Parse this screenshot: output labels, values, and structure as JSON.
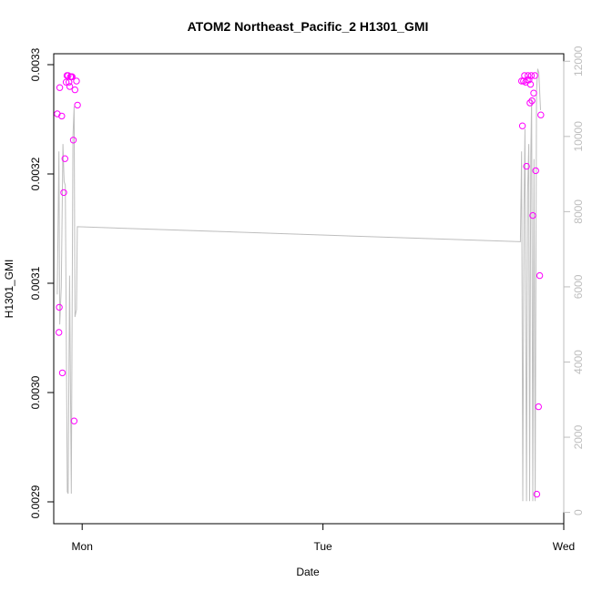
{
  "chart_data": {
    "type": "scatter",
    "title": "ATOM2 Northeast_Pacific_2 H1301_GMI",
    "xlabel": "Date",
    "ylabel": "H1301_GMI",
    "x_axis": {
      "type": "date",
      "range": [
        "Sun 21:10",
        "Wed 00:00"
      ],
      "ticks": [
        {
          "label": "Mon",
          "value": "Mon 00:00"
        },
        {
          "label": "Tue",
          "value": "Tue 00:00"
        },
        {
          "label": "Wed",
          "value": "Wed 00:00"
        }
      ]
    },
    "y_axis_left": {
      "range": [
        0.00288,
        0.00331
      ],
      "ticks": [
        {
          "label": "0.0029",
          "value": 0.0029
        },
        {
          "label": "0.0030",
          "value": 0.003
        },
        {
          "label": "0.0031",
          "value": 0.0031
        },
        {
          "label": "0.0032",
          "value": 0.0032
        },
        {
          "label": "0.0033",
          "value": 0.0033
        }
      ]
    },
    "y_axis_right": {
      "range": [
        -300,
        12200
      ],
      "ticks": [
        {
          "label": "0",
          "value": 0
        },
        {
          "label": "2000",
          "value": 2000
        },
        {
          "label": "4000",
          "value": 4000
        },
        {
          "label": "6000",
          "value": 6000
        },
        {
          "label": "8000",
          "value": 8000
        },
        {
          "label": "10000",
          "value": 10000
        },
        {
          "label": "12000",
          "value": 12000
        }
      ],
      "color": "#bebebe"
    },
    "grid": false,
    "legend": "none",
    "series": [
      {
        "kind": "points",
        "color": "#ff00ff",
        "points": [
          {
            "x": "Sun 21:31",
            "y": 0.003255
          },
          {
            "x": "Sun 21:41",
            "y": 0.003055
          },
          {
            "x": "Sun 21:43",
            "y": 0.003078
          },
          {
            "x": "Sun 21:46",
            "y": 0.003279
          },
          {
            "x": "Sun 21:58",
            "y": 0.003253
          },
          {
            "x": "Sun 22:02",
            "y": 0.003018
          },
          {
            "x": "Sun 22:10",
            "y": 0.003183
          },
          {
            "x": "Sun 22:17",
            "y": 0.003214
          },
          {
            "x": "Sun 22:24",
            "y": 0.003284
          },
          {
            "x": "Sun 22:29",
            "y": 0.00329
          },
          {
            "x": "Sun 22:36",
            "y": 0.00329
          },
          {
            "x": "Sun 22:41",
            "y": 0.003284
          },
          {
            "x": "Sun 22:46",
            "y": 0.00328
          },
          {
            "x": "Sun 22:50",
            "y": 0.003289
          },
          {
            "x": "Sun 22:55",
            "y": 0.003289
          },
          {
            "x": "Sun 23:00",
            "y": 0.003289
          },
          {
            "x": "Sun 23:07",
            "y": 0.003231
          },
          {
            "x": "Sun 23:12",
            "y": 0.002974
          },
          {
            "x": "Sun 23:17",
            "y": 0.003277
          },
          {
            "x": "Sun 23:26",
            "y": 0.003285
          },
          {
            "x": "Sun 23:32",
            "y": 0.003263
          },
          {
            "x": "Tue 19:48",
            "y": 0.003285
          },
          {
            "x": "Tue 19:53",
            "y": 0.003244
          },
          {
            "x": "Tue 19:59",
            "y": 0.003285
          },
          {
            "x": "Tue 20:05",
            "y": 0.00329
          },
          {
            "x": "Tue 20:12",
            "y": 0.003284
          },
          {
            "x": "Tue 20:17",
            "y": 0.003207
          },
          {
            "x": "Tue 20:22",
            "y": 0.003286
          },
          {
            "x": "Tue 20:26",
            "y": 0.00329
          },
          {
            "x": "Tue 20:32",
            "y": 0.003286
          },
          {
            "x": "Tue 20:38",
            "y": 0.003265
          },
          {
            "x": "Tue 20:41",
            "y": 0.003282
          },
          {
            "x": "Tue 20:46",
            "y": 0.00329
          },
          {
            "x": "Tue 20:50",
            "y": 0.003267
          },
          {
            "x": "Tue 20:55",
            "y": 0.003162
          },
          {
            "x": "Tue 21:00",
            "y": 0.003274
          },
          {
            "x": "Tue 21:07",
            "y": 0.00329
          },
          {
            "x": "Tue 21:12",
            "y": 0.003203
          },
          {
            "x": "Tue 21:19",
            "y": 0.002907
          },
          {
            "x": "Tue 21:29",
            "y": 0.002987
          },
          {
            "x": "Tue 21:36",
            "y": 0.003107
          },
          {
            "x": "Tue 21:43",
            "y": 0.003254
          }
        ]
      },
      {
        "kind": "line",
        "axis": "right",
        "color": "#bebebe",
        "points": [
          {
            "x": "Sun 21:31",
            "y": 5800
          },
          {
            "x": "Sun 21:41",
            "y": 9600
          },
          {
            "x": "Sun 21:46",
            "y": 5000
          },
          {
            "x": "Sun 21:55",
            "y": 6000
          },
          {
            "x": "Sun 22:05",
            "y": 9800
          },
          {
            "x": "Sun 22:12",
            "y": 8800
          },
          {
            "x": "Sun 22:19",
            "y": 8700
          },
          {
            "x": "Sun 22:31",
            "y": 550
          },
          {
            "x": "Sun 22:36",
            "y": 500
          },
          {
            "x": "Sun 22:45",
            "y": 6300
          },
          {
            "x": "Sun 22:55",
            "y": 500
          },
          {
            "x": "Sun 23:05",
            "y": 10000
          },
          {
            "x": "Sun 23:12",
            "y": 10800
          },
          {
            "x": "Sun 23:17",
            "y": 5200
          },
          {
            "x": "Sun 23:26",
            "y": 5400
          },
          {
            "x": "Sun 23:31",
            "y": 7600
          },
          {
            "x": "Tue 19:41",
            "y": 7200
          },
          {
            "x": "Tue 19:48",
            "y": 9600
          },
          {
            "x": "Tue 19:55",
            "y": 300
          },
          {
            "x": "Tue 20:02",
            "y": 8000
          },
          {
            "x": "Tue 20:08",
            "y": 10200
          },
          {
            "x": "Tue 20:17",
            "y": 300
          },
          {
            "x": "Tue 20:24",
            "y": 8500
          },
          {
            "x": "Tue 20:31",
            "y": 9800
          },
          {
            "x": "Tue 20:36",
            "y": 300
          },
          {
            "x": "Tue 20:43",
            "y": 9500
          },
          {
            "x": "Tue 20:48",
            "y": 11000
          },
          {
            "x": "Tue 20:55",
            "y": 300
          },
          {
            "x": "Tue 21:02",
            "y": 9400
          },
          {
            "x": "Tue 21:09",
            "y": 300
          },
          {
            "x": "Tue 21:17",
            "y": 11200
          },
          {
            "x": "Tue 21:24",
            "y": 11800
          },
          {
            "x": "Tue 21:31",
            "y": 11700
          },
          {
            "x": "Tue 21:41",
            "y": 10700
          }
        ]
      }
    ]
  }
}
